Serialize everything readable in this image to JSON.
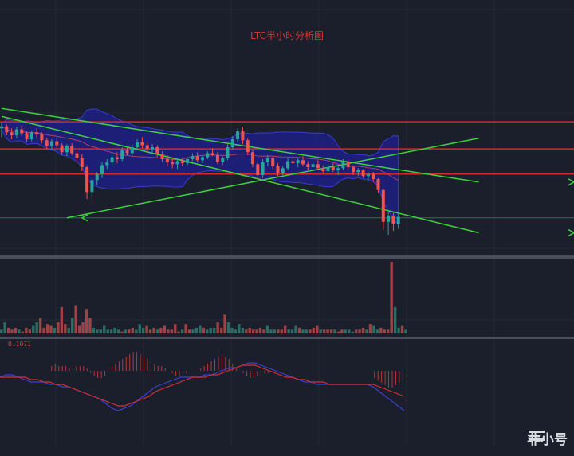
{
  "title": "LTC半小时分析图",
  "macd_label": "0.1071",
  "watermark": "非小号",
  "colors": {
    "background": "#1b1e2b",
    "up": "#26a69a",
    "down": "#ef5350",
    "resistance": "#d5282b",
    "trend": "#3bd43b",
    "boll_fill": "#1f1f8f",
    "boll_line": "#3a3ad6",
    "macd_dif": "#3f3fd8",
    "macd_dea": "#d93030"
  },
  "chart_data": [
    {
      "type": "candlestick",
      "panel": "price",
      "title": "LTC半小时分析图",
      "candles": [
        [
          62.0,
          62.6,
          61.1,
          62.2
        ],
        [
          62.2,
          62.4,
          61.3,
          61.6
        ],
        [
          61.6,
          62.0,
          60.9,
          61.3
        ],
        [
          61.3,
          62.1,
          61.0,
          61.9
        ],
        [
          61.9,
          62.3,
          61.2,
          61.5
        ],
        [
          61.5,
          61.7,
          60.6,
          60.9
        ],
        [
          60.9,
          61.8,
          60.7,
          61.6
        ],
        [
          61.6,
          62.0,
          61.0,
          61.4
        ],
        [
          61.4,
          61.6,
          60.5,
          60.8
        ],
        [
          60.8,
          61.0,
          59.9,
          60.2
        ],
        [
          60.2,
          60.9,
          59.8,
          60.7
        ],
        [
          60.7,
          61.1,
          60.0,
          60.3
        ],
        [
          60.3,
          60.5,
          59.3,
          59.6
        ],
        [
          59.6,
          60.4,
          59.2,
          60.2
        ],
        [
          60.2,
          60.5,
          59.3,
          59.5
        ],
        [
          59.5,
          59.8,
          58.7,
          59.0
        ],
        [
          59.0,
          59.4,
          57.7,
          58.1
        ],
        [
          58.1,
          58.3,
          54.9,
          55.6
        ],
        [
          55.6,
          57.0,
          54.4,
          56.8
        ],
        [
          56.8,
          57.6,
          56.3,
          57.4
        ],
        [
          57.4,
          58.6,
          57.0,
          58.3
        ],
        [
          58.3,
          58.9,
          57.9,
          58.6
        ],
        [
          58.6,
          59.4,
          58.2,
          59.1
        ],
        [
          59.1,
          59.6,
          58.5,
          58.9
        ],
        [
          58.9,
          60.1,
          58.7,
          59.8
        ],
        [
          59.8,
          60.2,
          59.3,
          59.5
        ],
        [
          59.5,
          60.4,
          59.2,
          60.1
        ],
        [
          60.1,
          60.9,
          59.8,
          60.6
        ],
        [
          60.6,
          61.1,
          60.0,
          60.3
        ],
        [
          60.3,
          60.6,
          59.6,
          59.9
        ],
        [
          59.9,
          60.4,
          59.5,
          60.1
        ],
        [
          60.1,
          60.3,
          59.1,
          59.4
        ],
        [
          59.4,
          59.7,
          58.6,
          58.9
        ],
        [
          58.9,
          59.3,
          58.2,
          58.6
        ],
        [
          58.6,
          59.0,
          58.0,
          58.4
        ],
        [
          58.4,
          58.9,
          57.9,
          58.7
        ],
        [
          58.7,
          59.0,
          58.2,
          58.5
        ],
        [
          58.5,
          59.1,
          58.3,
          58.9
        ],
        [
          58.9,
          59.5,
          58.7,
          59.2
        ],
        [
          59.2,
          59.6,
          58.6,
          58.8
        ],
        [
          58.8,
          59.3,
          58.5,
          59.1
        ],
        [
          59.1,
          59.7,
          58.9,
          59.5
        ],
        [
          59.5,
          60.0,
          59.2,
          59.3
        ],
        [
          59.3,
          59.6,
          58.4,
          58.6
        ],
        [
          58.6,
          59.2,
          58.3,
          59.0
        ],
        [
          59.0,
          60.4,
          58.8,
          60.1
        ],
        [
          60.1,
          61.2,
          59.9,
          60.9
        ],
        [
          60.9,
          62.0,
          60.6,
          61.7
        ],
        [
          61.7,
          62.1,
          60.4,
          60.8
        ],
        [
          60.8,
          61.0,
          59.3,
          59.6
        ],
        [
          59.6,
          59.8,
          58.1,
          58.4
        ],
        [
          58.4,
          58.7,
          56.9,
          57.3
        ],
        [
          57.3,
          58.9,
          57.0,
          58.6
        ],
        [
          58.6,
          59.3,
          58.2,
          59.0
        ],
        [
          59.0,
          59.2,
          57.9,
          58.2
        ],
        [
          58.2,
          58.5,
          57.2,
          57.5
        ],
        [
          57.5,
          58.2,
          57.3,
          58.0
        ],
        [
          58.0,
          59.0,
          57.8,
          58.7
        ],
        [
          58.7,
          59.1,
          58.2,
          58.5
        ],
        [
          58.5,
          59.0,
          58.1,
          58.8
        ],
        [
          58.8,
          59.2,
          58.2,
          58.4
        ],
        [
          58.4,
          58.7,
          57.8,
          58.1
        ],
        [
          58.1,
          58.6,
          57.9,
          58.4
        ],
        [
          58.4,
          58.8,
          57.8,
          58.0
        ],
        [
          58.0,
          58.3,
          57.5,
          57.7
        ],
        [
          57.7,
          58.4,
          57.5,
          58.1
        ],
        [
          58.1,
          58.5,
          57.6,
          57.8
        ],
        [
          57.8,
          58.2,
          57.3,
          58.0
        ],
        [
          58.0,
          58.9,
          57.8,
          58.6
        ],
        [
          58.6,
          58.8,
          57.9,
          58.1
        ],
        [
          58.1,
          58.3,
          57.3,
          57.6
        ],
        [
          57.6,
          58.0,
          57.2,
          57.8
        ],
        [
          57.8,
          57.9,
          57.0,
          57.2
        ],
        [
          57.2,
          57.6,
          56.8,
          57.4
        ],
        [
          57.4,
          57.6,
          56.6,
          56.9
        ],
        [
          56.9,
          57.0,
          55.5,
          55.8
        ],
        [
          55.8,
          55.9,
          51.8,
          52.6
        ],
        [
          52.6,
          53.6,
          51.3,
          53.2
        ],
        [
          53.2,
          53.6,
          51.7,
          52.4
        ],
        [
          52.4,
          53.4,
          51.9,
          53.1
        ]
      ],
      "horizontal_lines": [
        62.65,
        59.93,
        57.4,
        53.0
      ],
      "trend_lines": [
        {
          "from": [
            0,
            64.0
          ],
          "to": [
            95,
            56.6
          ]
        },
        {
          "from": [
            0,
            63.2
          ],
          "to": [
            95,
            51.5
          ]
        },
        {
          "from": [
            13,
            53.0
          ],
          "to": [
            95,
            61.0
          ]
        }
      ]
    },
    {
      "type": "bar",
      "panel": "volume",
      "values": [
        2,
        6,
        3,
        2,
        3,
        2,
        1,
        3,
        2,
        4,
        6,
        8,
        3,
        5,
        4,
        3,
        6,
        14,
        5,
        3,
        8,
        15,
        4,
        6,
        13,
        8,
        3,
        2,
        2,
        4,
        2,
        2,
        3,
        2,
        1,
        2,
        2,
        3,
        2,
        5,
        3,
        4,
        2,
        3,
        2,
        3,
        4,
        2,
        2,
        5,
        1,
        2,
        5,
        2,
        2,
        3,
        4,
        3,
        2,
        3,
        3,
        6,
        3,
        10,
        6,
        3,
        2,
        5,
        3,
        2,
        3,
        2,
        2,
        3,
        2,
        4,
        2,
        2,
        2,
        2,
        4,
        2,
        2,
        4,
        3,
        2,
        2,
        2,
        3,
        4,
        2,
        2,
        2,
        2,
        2,
        1,
        2,
        2,
        2,
        1,
        2,
        2,
        3,
        2,
        5,
        4,
        2,
        3,
        2,
        2,
        38,
        14,
        3,
        4,
        2
      ]
    },
    {
      "type": "bar",
      "panel": "macd",
      "title": "0.1071",
      "histogram": [
        0.0,
        0.0,
        0.0,
        0.0,
        0.0,
        0.0,
        0.0,
        0.0,
        0.0,
        0.0,
        0.0,
        0.0,
        0.0,
        0.0,
        0.02,
        0.03,
        0.02,
        0.02,
        0.02,
        0.01,
        0.01,
        0.02,
        0.02,
        0.02,
        0.01,
        -0.01,
        -0.02,
        -0.03,
        -0.03,
        -0.02,
        0.0,
        0.02,
        0.03,
        0.04,
        0.05,
        0.06,
        0.07,
        0.08,
        0.08,
        0.07,
        0.06,
        0.05,
        0.04,
        0.03,
        0.02,
        0.02,
        0.01,
        0.0,
        -0.01,
        -0.02,
        -0.02,
        -0.02,
        -0.01,
        0.0,
        0.0,
        0.0,
        0.01,
        0.02,
        0.03,
        0.04,
        0.05,
        0.06,
        0.07,
        0.06,
        0.05,
        0.03,
        0.01,
        0.0,
        -0.01,
        -0.02,
        -0.03,
        -0.03,
        -0.02,
        -0.02,
        -0.01,
        -0.01,
        0.0,
        0.0,
        0.0,
        0.0,
        0.0,
        0.0,
        0.0,
        0.0,
        0.0,
        0.0,
        0.0,
        0.0,
        0.0,
        0.0,
        0.0,
        0.0,
        0.0,
        0.0,
        0.0,
        0.0,
        0.0,
        0.0,
        0.0,
        0.0,
        0.0,
        0.0,
        0.0,
        0.0,
        0.0,
        -0.03,
        -0.04,
        -0.05,
        -0.06,
        -0.07,
        -0.07,
        -0.06,
        -0.05,
        -0.04
      ],
      "dif": [
        0.0,
        0.01,
        0.01,
        0.0,
        -0.01,
        -0.02,
        -0.02,
        -0.02,
        -0.03,
        -0.03,
        -0.04,
        -0.04,
        -0.05,
        -0.06,
        -0.07,
        -0.08,
        -0.09,
        -0.11,
        -0.13,
        -0.14,
        -0.13,
        -0.12,
        -0.1,
        -0.08,
        -0.06,
        -0.04,
        -0.03,
        -0.02,
        -0.01,
        0.0,
        0.0,
        0.0,
        0.0,
        0.01,
        0.01,
        0.02,
        0.03,
        0.04,
        0.04,
        0.05,
        0.06,
        0.06,
        0.05,
        0.04,
        0.03,
        0.02,
        0.01,
        0.0,
        -0.01,
        -0.02,
        -0.02,
        -0.03,
        -0.03,
        -0.03,
        -0.03,
        -0.03,
        -0.03,
        -0.03,
        -0.03,
        -0.03,
        -0.04,
        -0.06,
        -0.08,
        -0.1,
        -0.12,
        -0.14
      ],
      "dea": [
        0.0,
        0.0,
        0.0,
        0.0,
        0.0,
        -0.01,
        -0.01,
        -0.02,
        -0.02,
        -0.03,
        -0.03,
        -0.04,
        -0.05,
        -0.06,
        -0.07,
        -0.08,
        -0.09,
        -0.1,
        -0.11,
        -0.12,
        -0.12,
        -0.11,
        -0.1,
        -0.09,
        -0.08,
        -0.06,
        -0.05,
        -0.04,
        -0.03,
        -0.02,
        -0.01,
        0.0,
        0.0,
        0.0,
        0.01,
        0.01,
        0.02,
        0.03,
        0.04,
        0.05,
        0.05,
        0.05,
        0.04,
        0.03,
        0.02,
        0.01,
        0.0,
        0.0,
        -0.01,
        -0.01,
        -0.02,
        -0.02,
        -0.02,
        -0.03,
        -0.03,
        -0.03,
        -0.03,
        -0.03,
        -0.03,
        -0.03,
        -0.03,
        -0.04,
        -0.05,
        -0.06,
        -0.07,
        -0.08
      ]
    }
  ]
}
